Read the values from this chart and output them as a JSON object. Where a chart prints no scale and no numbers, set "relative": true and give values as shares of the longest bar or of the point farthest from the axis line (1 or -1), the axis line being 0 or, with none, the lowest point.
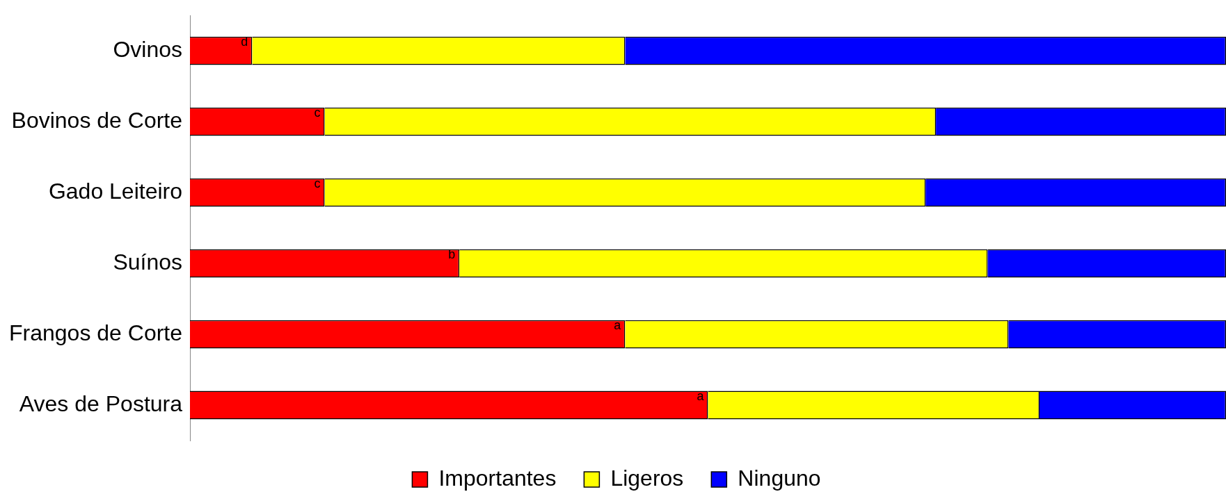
{
  "chart_data": {
    "type": "bar",
    "orientation": "horizontal",
    "stacked": true,
    "relative": true,
    "categories": [
      "Ovinos",
      "Bovinos de Corte",
      "Gado Leiteiro",
      "Suínos",
      "Frangos de Corte",
      "Aves de Postura"
    ],
    "series": [
      {
        "name": "Importantes",
        "color": "#ff0000",
        "values": [
          0.06,
          0.13,
          0.13,
          0.26,
          0.42,
          0.5
        ]
      },
      {
        "name": "Ligeros",
        "color": "#ffff00",
        "values": [
          0.36,
          0.59,
          0.58,
          0.51,
          0.37,
          0.32
        ]
      },
      {
        "name": "Ninguno",
        "color": "#0000ff",
        "values": [
          0.58,
          0.28,
          0.29,
          0.23,
          0.21,
          0.18
        ]
      }
    ],
    "annotations": [
      {
        "text": "d",
        "x": 0.06,
        "y": "Ovinos"
      },
      {
        "text": "c",
        "x": 0.13,
        "y": "Bovinos de Corte"
      },
      {
        "text": "c",
        "x": 0.13,
        "y": "Gado Leiteiro"
      },
      {
        "text": "b",
        "x": 0.26,
        "y": "Suínos"
      },
      {
        "text": "a",
        "x": 0.42,
        "y": "Frangos de Corte"
      },
      {
        "text": "a",
        "x": 0.5,
        "y": "Aves de Postura"
      }
    ],
    "legend": "bottom"
  }
}
